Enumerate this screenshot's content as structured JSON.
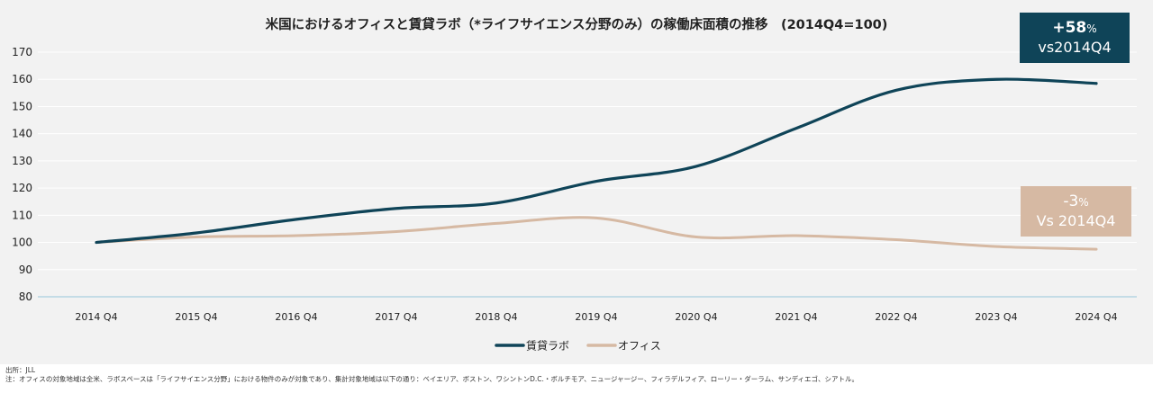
{
  "chart_data": {
    "type": "line",
    "title": "米国におけるオフィスと賃貸ラボ（*ライフサイエンス分野のみ）の稼働床面積の推移　(2014Q4=100)",
    "xlabel": "",
    "ylabel": "",
    "categories": [
      "2014 Q4",
      "2015 Q4",
      "2016 Q4",
      "2017 Q4",
      "2018 Q4",
      "2019 Q4",
      "2020 Q4",
      "2021 Q4",
      "2022 Q4",
      "2023 Q4",
      "2024 Q4"
    ],
    "yticks": [
      "170",
      "160",
      "150",
      "140",
      "130",
      "120",
      "110",
      "100",
      "90",
      "80"
    ],
    "ylim": [
      80,
      170
    ],
    "grid": true,
    "legend_position": "bottom",
    "series": [
      {
        "name": "賃貸ラボ",
        "color": "#0f4458",
        "values": [
          100,
          103.5,
          108.5,
          112.5,
          114.5,
          122.5,
          128,
          142,
          156,
          160,
          158.5
        ]
      },
      {
        "name": "オフィス",
        "color": "#d6b9a3",
        "values": [
          100,
          102,
          102.5,
          104,
          107,
          109,
          102,
          102.5,
          101,
          98.5,
          97.5
        ]
      }
    ],
    "annotations": [
      {
        "id": "lab",
        "value": "+58",
        "unit": "%",
        "line2": "vs2014Q4",
        "color": "#0f4458"
      },
      {
        "id": "office",
        "value": "-3",
        "unit": "%",
        "line2": "Vs 2014Q4",
        "color": "#d6b9a3"
      }
    ]
  },
  "notes": {
    "source": "出所：JLL",
    "note": "注：オフィスの対象地域は全米、ラボスペースは「ライフサイエンス分野」における物件のみが対象であり、集計対象地域は以下の通り：ベイエリア、ボストン、ワシントンD.C.・ボルチモア、ニュージャージー、フィラデルフィア、ローリー・ダーラム、サンディエゴ、シアトル。"
  }
}
